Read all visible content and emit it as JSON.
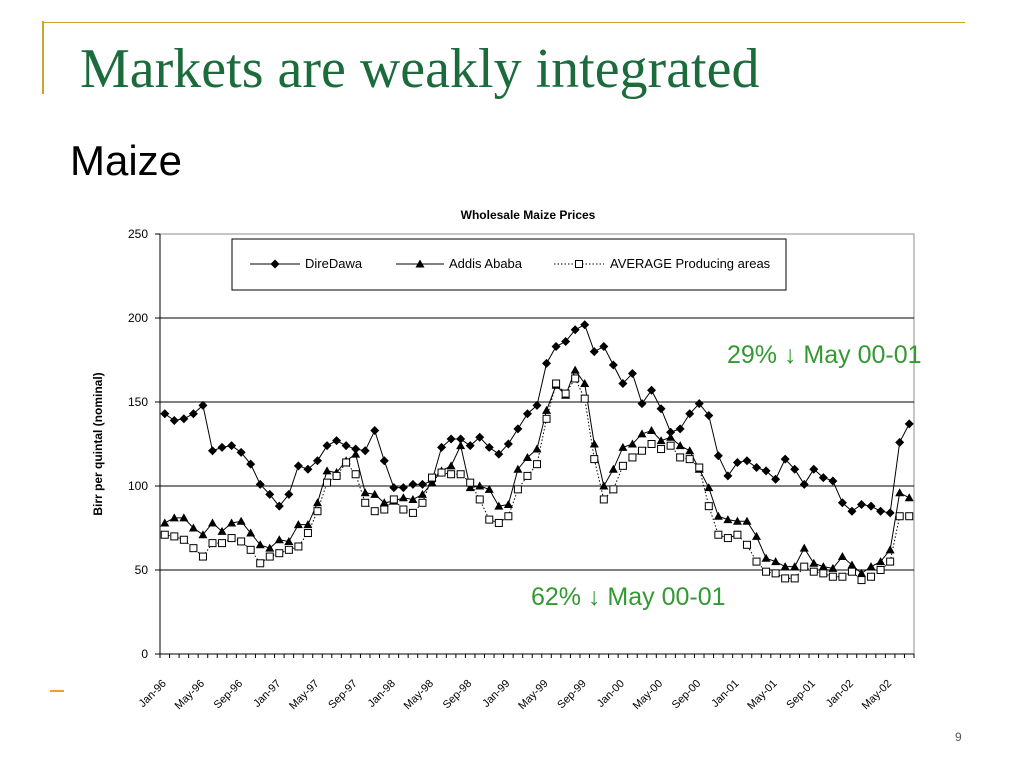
{
  "slide": {
    "title": "Markets are weakly integrated",
    "subtitle": "Maize",
    "page_number": "9",
    "colors": {
      "title": "#1b6b3c",
      "rule": "#cda434",
      "annotation": "#339933",
      "dash": "#ef9f2c"
    }
  },
  "annotations": [
    {
      "text": "29% ↓ May 00-01"
    },
    {
      "text": "62% ↓ May 00-01"
    }
  ],
  "chart_data": {
    "type": "line",
    "title": "Wholesale Maize Prices",
    "ylabel": "Birr per quintal (nominal)",
    "ylim": [
      0,
      250
    ],
    "yticks": [
      0,
      50,
      100,
      150,
      200,
      250
    ],
    "grid": true,
    "legend": "top",
    "categories": [
      "Jan-96",
      "",
      "",
      "",
      "May-96",
      "",
      "",
      "",
      "Sep-96",
      "",
      "",
      "",
      "Jan-97",
      "",
      "",
      "",
      "May-97",
      "",
      "",
      "",
      "Sep-97",
      "",
      "",
      "",
      "Jan-98",
      "",
      "",
      "",
      "May-98",
      "",
      "",
      "",
      "Sep-98",
      "",
      "",
      "",
      "Jan-99",
      "",
      "",
      "",
      "May-99",
      "",
      "",
      "",
      "Sep-99",
      "",
      "",
      "",
      "Jan-00",
      "",
      "",
      "",
      "May-00",
      "",
      "",
      "",
      "Sep-00",
      "",
      "",
      "",
      "Jan-01",
      "",
      "",
      "",
      "May-01",
      "",
      "",
      "",
      "Sep-01",
      "",
      "",
      "",
      "Jan-02",
      "",
      "",
      "",
      "May-02",
      "",
      ""
    ],
    "series": [
      {
        "name": "DireDawa",
        "marker": "diamond",
        "line": "solid",
        "values": [
          143,
          139,
          140,
          143,
          148,
          121,
          123,
          124,
          120,
          113,
          101,
          95,
          88,
          95,
          112,
          110,
          115,
          124,
          127,
          124,
          122,
          121,
          133,
          115,
          99,
          99,
          101,
          101,
          103,
          123,
          128,
          128,
          124,
          129,
          123,
          119,
          125,
          134,
          143,
          148,
          173,
          183,
          186,
          193,
          196,
          180,
          183,
          172,
          161,
          167,
          149,
          157,
          146,
          132,
          134,
          143,
          149,
          142,
          118,
          106,
          114,
          115,
          111,
          109,
          104,
          116,
          110,
          101,
          110,
          105,
          103,
          90,
          85,
          89,
          88,
          85,
          84,
          126,
          137
        ]
      },
      {
        "name": "Addis Ababa",
        "marker": "triangle",
        "line": "solid",
        "values": [
          78,
          81,
          81,
          75,
          71,
          78,
          73,
          78,
          79,
          72,
          65,
          63,
          68,
          67,
          77,
          77,
          90,
          109,
          108,
          115,
          119,
          96,
          95,
          90,
          91,
          93,
          92,
          95,
          102,
          109,
          112,
          124,
          99,
          100,
          98,
          88,
          89,
          110,
          117,
          122,
          145,
          160,
          154,
          169,
          161,
          125,
          100,
          110,
          123,
          125,
          131,
          133,
          127,
          129,
          124,
          121,
          110,
          99,
          82,
          80,
          79,
          79,
          70,
          57,
          55,
          52,
          52,
          63,
          54,
          52,
          51,
          58,
          53,
          48,
          52,
          55,
          62,
          96,
          93
        ]
      },
      {
        "name": "AVERAGE Producing areas",
        "marker": "square",
        "line": "dotted",
        "values": [
          71,
          70,
          68,
          63,
          58,
          66,
          66,
          69,
          67,
          62,
          54,
          58,
          60,
          62,
          64,
          72,
          85,
          102,
          106,
          114,
          107,
          90,
          85,
          86,
          92,
          86,
          84,
          90,
          105,
          108,
          107,
          107,
          102,
          92,
          80,
          78,
          82,
          98,
          106,
          113,
          140,
          161,
          155,
          164,
          152,
          116,
          92,
          98,
          112,
          117,
          121,
          125,
          122,
          124,
          117,
          116,
          111,
          88,
          71,
          69,
          71,
          65,
          55,
          49,
          48,
          45,
          45,
          52,
          49,
          48,
          46,
          46,
          49,
          44,
          46,
          50,
          55,
          82,
          82
        ]
      }
    ]
  }
}
